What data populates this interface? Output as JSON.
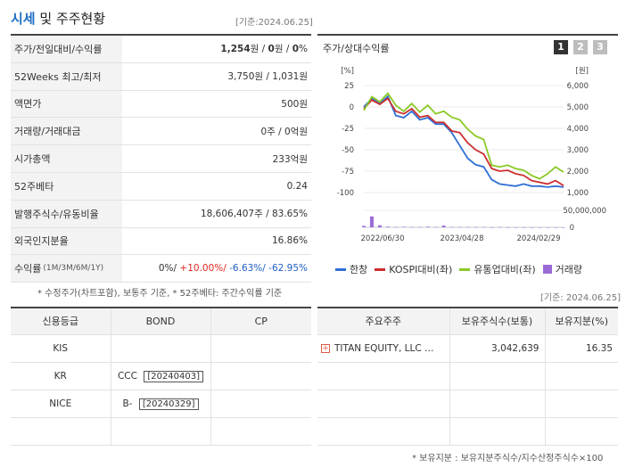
{
  "header": {
    "title_hl": "시세",
    "title_rest": " 및 주주현황",
    "asof": "[기준:2024.06.25]"
  },
  "stats": [
    {
      "label": "주가/전일대비/수익률",
      "value_parts": [
        {
          "t": "1,254",
          "c": "bold"
        },
        {
          "t": "원 / ",
          "c": ""
        },
        {
          "t": "0",
          "c": "bold"
        },
        {
          "t": "원 / ",
          "c": ""
        },
        {
          "t": "0",
          "c": "bold"
        },
        {
          "t": "%",
          "c": ""
        }
      ]
    },
    {
      "label": "52Weeks 최고/최저",
      "value": "3,750원 / 1,031원"
    },
    {
      "label": "액면가",
      "value": "500원"
    },
    {
      "label": "거래량/거래대금",
      "value": "0주 / 0억원"
    },
    {
      "label": "시가총액",
      "value": "233억원"
    },
    {
      "label": "52주베타",
      "value": "0.24"
    },
    {
      "label": "발행주식수/유동비율",
      "value": "18,606,407주 / 83.65%"
    },
    {
      "label": "외국인지분율",
      "value": "16.86%"
    }
  ],
  "returns": {
    "label": "수익률",
    "period": "(1M/3M/6M/1Y)",
    "v1": "0%/",
    "v2": " +10.00%/",
    "v3": " -6.63%/",
    "v4": " -62.95%"
  },
  "note_left": "* 수정주가(차트포함), 보통주 기준, * 52주베타: 주간수익률 기준",
  "chart_panel": {
    "title": "주가/상대수익률",
    "period_buttons": [
      "1",
      "2",
      "3"
    ],
    "active_button": "1",
    "legend": [
      {
        "name": "한창",
        "color": "#2e6fd6",
        "kind": "line"
      },
      {
        "name": "KOSPI대비(좌)",
        "color": "#cc2e2e",
        "kind": "line"
      },
      {
        "name": "유통업대비(좌)",
        "color": "#8ac926",
        "kind": "line"
      },
      {
        "name": "거래량",
        "color": "#9b6ad6",
        "kind": "box"
      }
    ]
  },
  "chart_data": {
    "type": "line",
    "left_unit": "[%]",
    "right_unit": "[원]",
    "left_ticks": [
      "25",
      "0",
      "-25",
      "-50",
      "-75",
      "-100"
    ],
    "right_ticks": [
      "6,000",
      "5,000",
      "4,000",
      "3,000",
      "2,000",
      "1,000"
    ],
    "vol_ticks": [
      "50,000,000",
      "0"
    ],
    "x_ticks": [
      "2022/06/30",
      "2023/04/28",
      "2024/02/29"
    ],
    "ylim_left": [
      -100,
      25
    ],
    "ylim_right": [
      1000,
      6000
    ],
    "series": [
      {
        "name": "한창",
        "axis": "right",
        "color": "#2e6fd6",
        "values": [
          5000,
          5400,
          5150,
          5500,
          4600,
          4500,
          4800,
          4400,
          4500,
          4200,
          4200,
          3800,
          3200,
          2600,
          2300,
          2200,
          1600,
          1400,
          1350,
          1300,
          1400,
          1300,
          1300,
          1254,
          1300,
          1254
        ]
      },
      {
        "name": "KOSPI대비(좌)",
        "axis": "left",
        "color": "#cc2e2e",
        "values": [
          -2,
          8,
          3,
          10,
          -5,
          -8,
          -2,
          -12,
          -10,
          -18,
          -18,
          -28,
          -30,
          -42,
          -50,
          -55,
          -72,
          -75,
          -74,
          -78,
          -80,
          -86,
          -88,
          -90,
          -86,
          -92
        ]
      },
      {
        "name": "유통업대비(좌)",
        "axis": "left",
        "color": "#8ac926",
        "values": [
          -4,
          12,
          6,
          16,
          2,
          -5,
          4,
          -6,
          2,
          -8,
          -5,
          -12,
          -15,
          -26,
          -34,
          -38,
          -68,
          -70,
          -68,
          -72,
          -74,
          -80,
          -84,
          -78,
          -70,
          -76
        ]
      },
      {
        "name": "거래량",
        "axis": "volume",
        "color": "#9b6ad6",
        "values": [
          4000000,
          32000000,
          6000000,
          2000000,
          1000000,
          1500000,
          1000000,
          800000,
          2000000,
          1000000,
          5000000,
          1000000,
          1000000,
          1000000,
          500000,
          800000,
          300000,
          500000,
          300000,
          200000,
          300000,
          200000,
          200000,
          200000,
          100000,
          100000
        ]
      }
    ]
  },
  "bottom_asof": "[기준: 2024.06.25]",
  "credit_table": {
    "headers": [
      "신용등급",
      "BOND",
      "CP"
    ],
    "rows": [
      {
        "agency": "KIS",
        "bond_grade": "",
        "bond_date": "",
        "cp": ""
      },
      {
        "agency": "KR",
        "bond_grade": "CCC",
        "bond_date": "[20240403]",
        "cp": ""
      },
      {
        "agency": "NICE",
        "bond_grade": "B-",
        "bond_date": "[20240329]",
        "cp": ""
      },
      {
        "agency": "",
        "bond_grade": "",
        "bond_date": "",
        "cp": ""
      }
    ]
  },
  "holder_table": {
    "headers": [
      "주요주주",
      "보유주식수(보통)",
      "보유지분(%)"
    ],
    "rows": [
      {
        "name": "TITAN EQUITY, LLC …",
        "shares": "3,042,639",
        "pct": "16.35"
      },
      {
        "name": "",
        "shares": "",
        "pct": ""
      },
      {
        "name": "",
        "shares": "",
        "pct": ""
      },
      {
        "name": "",
        "shares": "",
        "pct": ""
      }
    ]
  },
  "note_right": "* 보유지분 : 보유지분주식수/지수산정주식수×100"
}
